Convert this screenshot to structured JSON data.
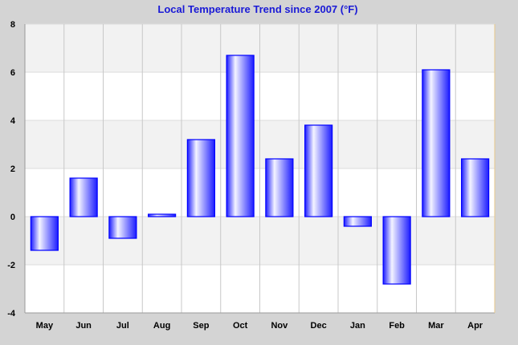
{
  "chart_data": {
    "type": "bar",
    "title": "Local Temperature Trend since 2007 (°F)",
    "xlabel": "",
    "ylabel": "",
    "categories": [
      "May",
      "Jun",
      "Jul",
      "Aug",
      "Sep",
      "Oct",
      "Nov",
      "Dec",
      "Jan",
      "Feb",
      "Mar",
      "Apr"
    ],
    "values": [
      -1.4,
      1.6,
      -0.9,
      0.1,
      3.2,
      6.7,
      2.4,
      3.8,
      -0.4,
      -2.8,
      6.1,
      2.4
    ],
    "ylim": [
      -4,
      8
    ],
    "yticks": [
      "8",
      "6",
      "4",
      "2",
      "0",
      "-2",
      "-4"
    ],
    "grid": true,
    "legend": "none",
    "colors": {
      "bar_edge": "#0000ff",
      "bar_light": "#f4f4ff",
      "bar_dark": "#1c1cff",
      "band_light": "#ffffff",
      "band_shade": "#f2f2f2",
      "background": "#d4d4d4",
      "title": "#1a1ad6"
    }
  }
}
